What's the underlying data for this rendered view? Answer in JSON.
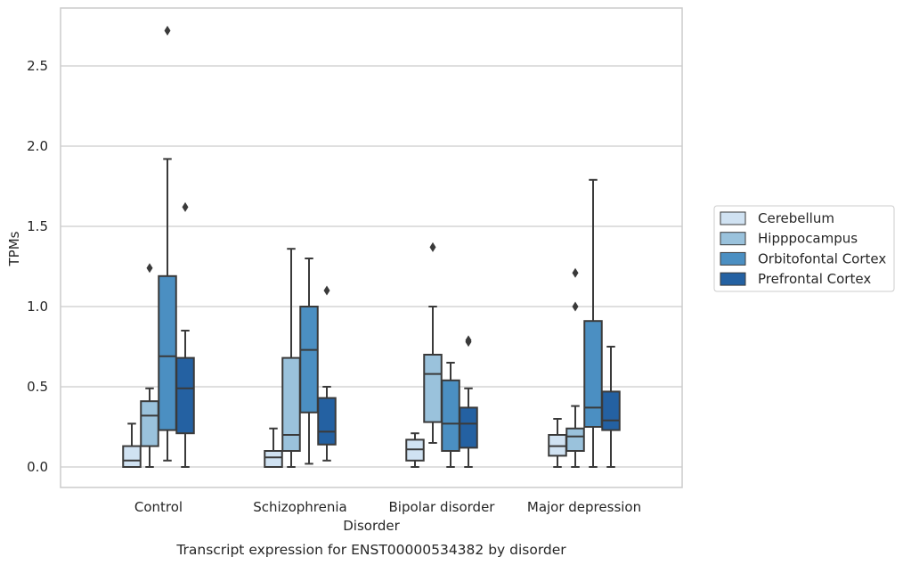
{
  "chart_data": {
    "type": "box",
    "caption": "Transcript expression for ENST00000534382 by disorder",
    "xlabel": "Disorder",
    "ylabel": "TPMs",
    "ylim": [
      -0.13,
      2.87
    ],
    "yticks": [
      "0.0",
      "0.5",
      "1.0",
      "1.5",
      "2.0",
      "2.5"
    ],
    "grid": "horizontal",
    "legend_position": "right",
    "categories": [
      "Control",
      "Schizophrenia",
      "Bipolar disorder",
      "Major depression"
    ],
    "series": [
      {
        "name": "Cerebellum",
        "color": "#d0e2f2",
        "boxes": [
          {
            "whisker_low": 0.0,
            "q1": 0.0,
            "median": 0.04,
            "q3": 0.13,
            "whisker_high": 0.27,
            "outliers": []
          },
          {
            "whisker_low": 0.0,
            "q1": 0.0,
            "median": 0.06,
            "q3": 0.1,
            "whisker_high": 0.24,
            "outliers": []
          },
          {
            "whisker_low": 0.0,
            "q1": 0.04,
            "median": 0.11,
            "q3": 0.17,
            "whisker_high": 0.21,
            "outliers": []
          },
          {
            "whisker_low": 0.0,
            "q1": 0.07,
            "median": 0.13,
            "q3": 0.2,
            "whisker_high": 0.3,
            "outliers": []
          }
        ]
      },
      {
        "name": "Hipppocampus",
        "color": "#9ac2dc",
        "boxes": [
          {
            "whisker_low": 0.0,
            "q1": 0.13,
            "median": 0.32,
            "q3": 0.41,
            "whisker_high": 0.49,
            "outliers": [
              1.24
            ]
          },
          {
            "whisker_low": 0.0,
            "q1": 0.1,
            "median": 0.2,
            "q3": 0.68,
            "whisker_high": 1.36,
            "outliers": []
          },
          {
            "whisker_low": 0.15,
            "q1": 0.28,
            "median": 0.58,
            "q3": 0.7,
            "whisker_high": 1.0,
            "outliers": [
              1.37
            ]
          },
          {
            "whisker_low": 0.0,
            "q1": 0.1,
            "median": 0.19,
            "q3": 0.24,
            "whisker_high": 0.38,
            "outliers": [
              1.0,
              1.21
            ]
          }
        ]
      },
      {
        "name": "Orbitofontal Cortex",
        "color": "#4b8fc2",
        "boxes": [
          {
            "whisker_low": 0.04,
            "q1": 0.23,
            "median": 0.69,
            "q3": 1.19,
            "whisker_high": 1.92,
            "outliers": [
              2.72
            ]
          },
          {
            "whisker_low": 0.02,
            "q1": 0.34,
            "median": 0.73,
            "q3": 1.0,
            "whisker_high": 1.3,
            "outliers": []
          },
          {
            "whisker_low": 0.0,
            "q1": 0.1,
            "median": 0.27,
            "q3": 0.54,
            "whisker_high": 0.65,
            "outliers": []
          },
          {
            "whisker_low": 0.0,
            "q1": 0.25,
            "median": 0.37,
            "q3": 0.91,
            "whisker_high": 1.79,
            "outliers": []
          }
        ]
      },
      {
        "name": "Prefrontal Cortex",
        "color": "#2461a2",
        "boxes": [
          {
            "whisker_low": 0.0,
            "q1": 0.21,
            "median": 0.49,
            "q3": 0.68,
            "whisker_high": 0.85,
            "outliers": [
              1.62
            ]
          },
          {
            "whisker_low": 0.04,
            "q1": 0.14,
            "median": 0.22,
            "q3": 0.43,
            "whisker_high": 0.5,
            "outliers": [
              1.1
            ]
          },
          {
            "whisker_low": 0.0,
            "q1": 0.12,
            "median": 0.27,
            "q3": 0.37,
            "whisker_high": 0.49,
            "outliers": [
              0.78,
              0.79
            ]
          },
          {
            "whisker_low": 0.0,
            "q1": 0.23,
            "median": 0.29,
            "q3": 0.47,
            "whisker_high": 0.75,
            "outliers": []
          }
        ]
      }
    ]
  }
}
